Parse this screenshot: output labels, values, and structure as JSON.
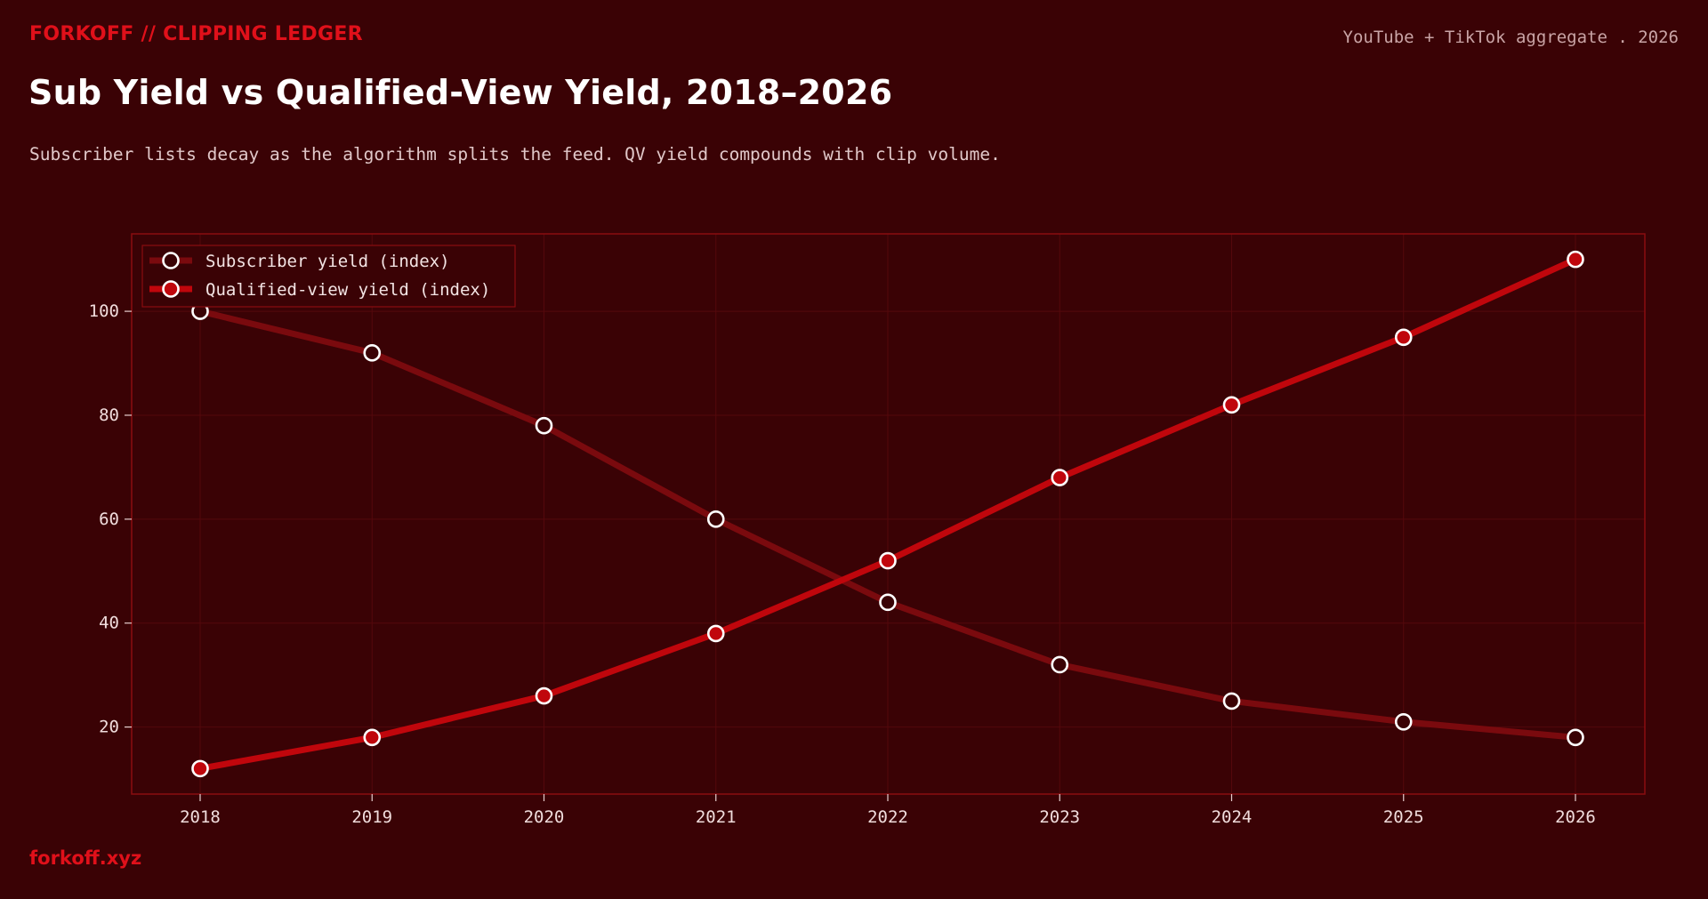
{
  "header": {
    "brand": "FORKOFF // CLIPPING LEDGER",
    "meta": "YouTube + TikTok aggregate . 2026",
    "title": "Sub Yield vs Qualified-View Yield, 2018–2026",
    "subtitle": "Subscriber lists decay as the algorithm splits the feed. QV yield compounds with clip volume."
  },
  "footer": {
    "site": "forkoff.xyz"
  },
  "colors": {
    "background": "#3a0205",
    "subscriber_series": "#7a0a0e",
    "qv_series": "#c0060c",
    "accent": "#e0101a",
    "frame": "#8a0c10",
    "grid": "#54080c",
    "marker_stroke": "#ffffff"
  },
  "chart_data": {
    "type": "line",
    "x": [
      "2018",
      "2019",
      "2020",
      "2021",
      "2022",
      "2023",
      "2024",
      "2025",
      "2026"
    ],
    "series": [
      {
        "name": "Subscriber yield (index)",
        "values": [
          100,
          92,
          78,
          60,
          44,
          32,
          25,
          21,
          18
        ]
      },
      {
        "name": "Qualified-view yield (index)",
        "values": [
          12,
          18,
          26,
          38,
          52,
          68,
          82,
          95,
          110
        ]
      }
    ],
    "title": "Sub Yield vs Qualified-View Yield, 2018–2026",
    "xlabel": "",
    "ylabel": "",
    "ylim": [
      7.1,
      114.9
    ],
    "yticks": [
      20,
      40,
      60,
      80,
      100
    ],
    "grid": true,
    "legend": "top-left"
  }
}
